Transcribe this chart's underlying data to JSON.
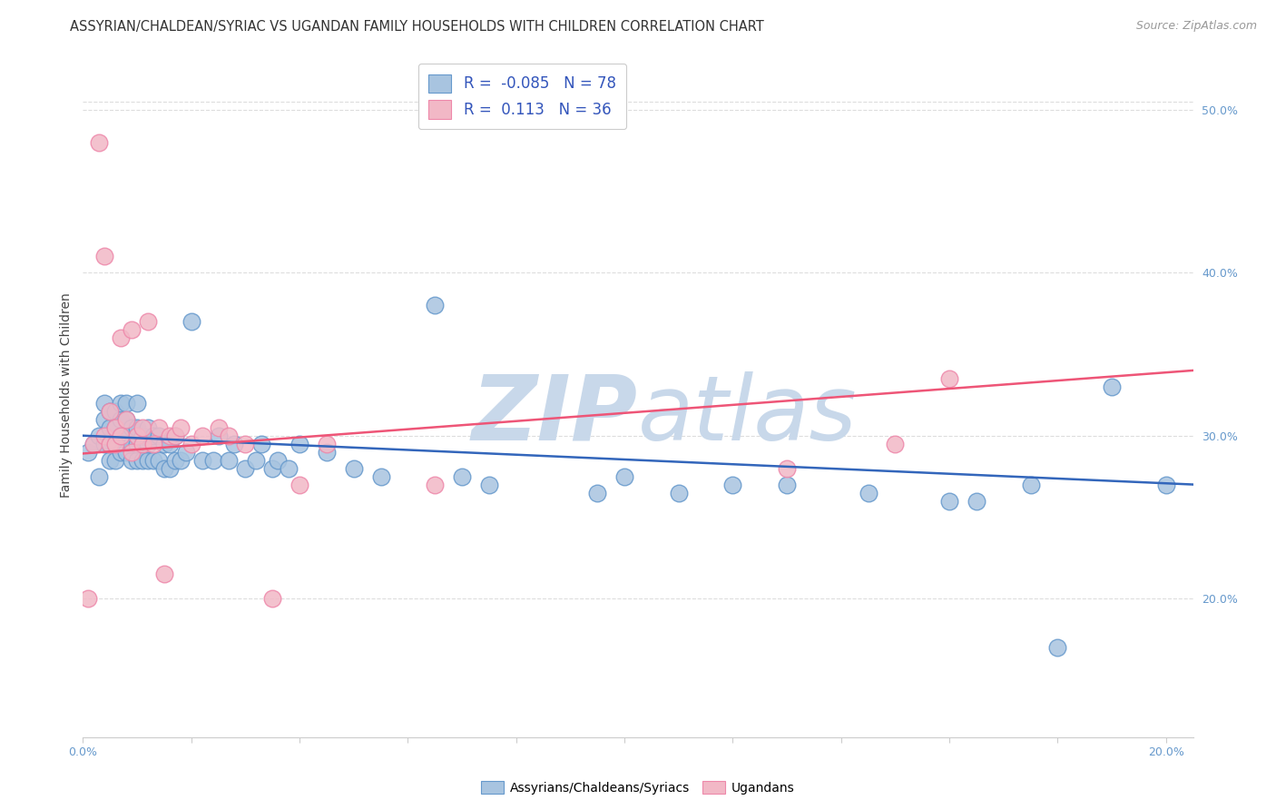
{
  "title": "ASSYRIAN/CHALDEAN/SYRIAC VS UGANDAN FAMILY HOUSEHOLDS WITH CHILDREN CORRELATION CHART",
  "source": "Source: ZipAtlas.com",
  "ylabel": "Family Households with Children",
  "xlim": [
    0.0,
    0.205
  ],
  "ylim": [
    0.115,
    0.535
  ],
  "blue_R": -0.085,
  "blue_N": 78,
  "pink_R": 0.113,
  "pink_N": 36,
  "blue_color": "#A8C4E0",
  "pink_color": "#F2B8C6",
  "blue_edge_color": "#6699CC",
  "pink_edge_color": "#EE88AA",
  "blue_line_color": "#3366BB",
  "pink_line_color": "#EE5577",
  "watermark_color": "#C8D8EA",
  "grid_color": "#DDDDDD",
  "bg_color": "#FFFFFF",
  "tick_color": "#6699CC",
  "title_fontsize": 10.5,
  "axis_label_fontsize": 10,
  "tick_fontsize": 9,
  "source_fontsize": 9,
  "blue_x": [
    0.001,
    0.002,
    0.003,
    0.003,
    0.004,
    0.004,
    0.004,
    0.005,
    0.005,
    0.005,
    0.005,
    0.006,
    0.006,
    0.006,
    0.006,
    0.007,
    0.007,
    0.007,
    0.007,
    0.008,
    0.008,
    0.008,
    0.008,
    0.009,
    0.009,
    0.009,
    0.01,
    0.01,
    0.01,
    0.01,
    0.011,
    0.011,
    0.012,
    0.012,
    0.012,
    0.013,
    0.013,
    0.014,
    0.014,
    0.015,
    0.015,
    0.016,
    0.016,
    0.017,
    0.017,
    0.018,
    0.019,
    0.02,
    0.022,
    0.024,
    0.025,
    0.027,
    0.028,
    0.03,
    0.032,
    0.033,
    0.035,
    0.036,
    0.038,
    0.04,
    0.045,
    0.05,
    0.055,
    0.065,
    0.07,
    0.075,
    0.095,
    0.1,
    0.11,
    0.12,
    0.13,
    0.145,
    0.16,
    0.165,
    0.175,
    0.18,
    0.19,
    0.2
  ],
  "blue_y": [
    0.29,
    0.295,
    0.3,
    0.275,
    0.295,
    0.31,
    0.32,
    0.285,
    0.295,
    0.305,
    0.315,
    0.285,
    0.295,
    0.305,
    0.315,
    0.29,
    0.3,
    0.31,
    0.32,
    0.29,
    0.3,
    0.31,
    0.32,
    0.285,
    0.295,
    0.305,
    0.285,
    0.295,
    0.305,
    0.32,
    0.285,
    0.3,
    0.285,
    0.295,
    0.305,
    0.285,
    0.3,
    0.285,
    0.3,
    0.28,
    0.295,
    0.28,
    0.295,
    0.285,
    0.3,
    0.285,
    0.29,
    0.37,
    0.285,
    0.285,
    0.3,
    0.285,
    0.295,
    0.28,
    0.285,
    0.295,
    0.28,
    0.285,
    0.28,
    0.295,
    0.29,
    0.28,
    0.275,
    0.38,
    0.275,
    0.27,
    0.265,
    0.275,
    0.265,
    0.27,
    0.27,
    0.265,
    0.26,
    0.26,
    0.27,
    0.17,
    0.33,
    0.27
  ],
  "pink_x": [
    0.001,
    0.002,
    0.003,
    0.004,
    0.004,
    0.005,
    0.005,
    0.006,
    0.006,
    0.007,
    0.007,
    0.008,
    0.009,
    0.009,
    0.01,
    0.011,
    0.011,
    0.012,
    0.013,
    0.014,
    0.015,
    0.016,
    0.017,
    0.018,
    0.02,
    0.022,
    0.025,
    0.027,
    0.03,
    0.035,
    0.04,
    0.045,
    0.065,
    0.13,
    0.15,
    0.16
  ],
  "pink_y": [
    0.2,
    0.295,
    0.48,
    0.41,
    0.3,
    0.295,
    0.315,
    0.295,
    0.305,
    0.36,
    0.3,
    0.31,
    0.29,
    0.365,
    0.3,
    0.295,
    0.305,
    0.37,
    0.295,
    0.305,
    0.215,
    0.3,
    0.3,
    0.305,
    0.295,
    0.3,
    0.305,
    0.3,
    0.295,
    0.2,
    0.27,
    0.295,
    0.27,
    0.28,
    0.295,
    0.335
  ],
  "blue_trend": [
    0.3,
    0.27
  ],
  "pink_trend": [
    0.289,
    0.34
  ],
  "yticks": [
    0.2,
    0.3,
    0.4,
    0.5
  ],
  "yticklabels": [
    "20.0%",
    "30.0%",
    "40.0%",
    "50.0%"
  ],
  "xtick_positions": [
    0.0,
    0.02,
    0.04,
    0.06,
    0.08,
    0.1,
    0.12,
    0.14,
    0.16,
    0.18,
    0.2
  ],
  "xticklabels": [
    "0.0%",
    "",
    "",
    "",
    "",
    "",
    "",
    "",
    "",
    "",
    "20.0%"
  ]
}
